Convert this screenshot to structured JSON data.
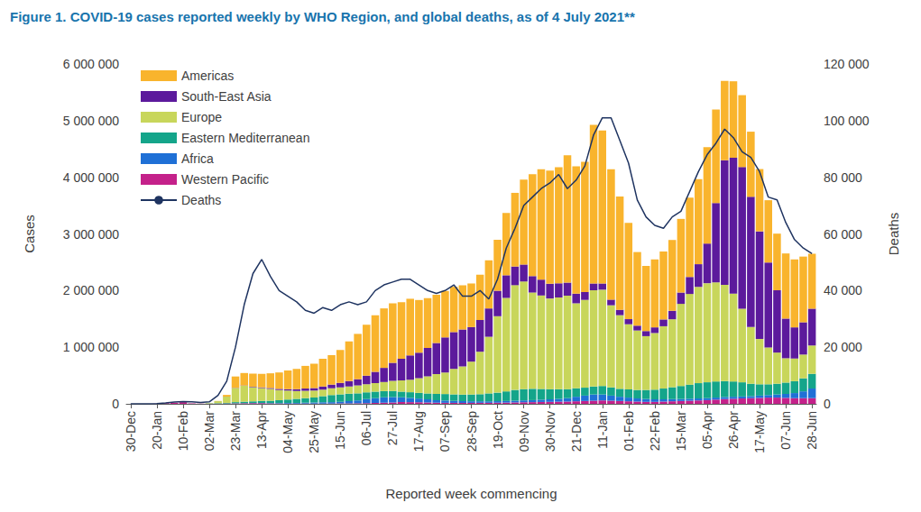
{
  "chart_data": {
    "type": "bar",
    "title": "Figure 1. COVID-19 cases reported weekly by WHO Region, and global deaths, as of 4 July 2021**",
    "x_label": "Reported week commencing",
    "y_label": "Cases",
    "y2_label": "Deaths",
    "stacked": true,
    "grid": false,
    "legend": "upper left",
    "categories": [
      "30-Dec",
      null,
      null,
      "20-Jan",
      null,
      null,
      "10-Feb",
      null,
      null,
      "02-Mar",
      null,
      null,
      "23-Mar",
      null,
      null,
      "13-Apr",
      null,
      null,
      "04-May",
      null,
      null,
      "25-May",
      null,
      null,
      "15-Jun",
      null,
      null,
      "06-Jul",
      null,
      null,
      "27-Jul",
      null,
      null,
      "17-Aug",
      null,
      null,
      "07-Sep",
      null,
      null,
      "28-Sep",
      null,
      null,
      "19-Oct",
      null,
      null,
      "09-Nov",
      null,
      null,
      "30-Nov",
      null,
      null,
      "21-Dec",
      null,
      null,
      "11-Jan",
      null,
      null,
      "01-Feb",
      null,
      null,
      "22-Feb",
      null,
      null,
      "15-Mar",
      null,
      null,
      "05-Apr",
      null,
      null,
      "26-Apr",
      null,
      null,
      "17-May",
      null,
      null,
      "07-Jun",
      null,
      null,
      "28-Jun"
    ],
    "ylim": [
      0,
      6000000
    ],
    "yticks": [
      0,
      {
        "value": 1000000,
        "label": "1 000 000"
      },
      {
        "value": 2000000,
        "label": "2 000 000"
      },
      {
        "value": 3000000,
        "label": "3 000 000"
      },
      {
        "value": 4000000,
        "label": "4 000 000"
      },
      {
        "value": 5000000,
        "label": "5 000 000"
      },
      {
        "value": 6000000,
        "label": "6 000 000"
      }
    ],
    "y2lim": [
      0,
      120000
    ],
    "y2ticks": [
      0,
      {
        "value": 20000,
        "label": "20 000"
      },
      {
        "value": 40000,
        "label": "40 000"
      },
      {
        "value": 60000,
        "label": "60 000"
      },
      {
        "value": 80000,
        "label": "80 000"
      },
      {
        "value": 100000,
        "label": "100 000"
      },
      {
        "value": 120000,
        "label": "120 000"
      }
    ],
    "series": [
      {
        "name": "Americas",
        "color": "#f9b42d",
        "values": [
          0,
          0,
          0,
          0,
          0,
          0,
          0,
          0,
          0,
          500,
          3000,
          30000,
          200000,
          220000,
          230000,
          240000,
          260000,
          290000,
          330000,
          360000,
          400000,
          430000,
          490000,
          520000,
          580000,
          700000,
          800000,
          900000,
          1000000,
          1050000,
          1050000,
          1000000,
          1000000,
          930000,
          880000,
          850000,
          820000,
          800000,
          780000,
          770000,
          800000,
          850000,
          900000,
          1100000,
          1300000,
          1500000,
          1800000,
          1950000,
          2000000,
          2050000,
          2250000,
          2250000,
          2300000,
          2800000,
          2700000,
          2300000,
          2000000,
          1700000,
          1300000,
          1150000,
          1200000,
          1200000,
          1250000,
          1300000,
          1400000,
          1500000,
          1700000,
          1650000,
          1400000,
          1350000,
          1270000,
          1150000,
          1100000,
          1100000,
          1000000,
          1150000,
          1200000,
          1160000,
          970000
        ]
      },
      {
        "name": "South-East Asia",
        "color": "#5c1a9c",
        "values": [
          0,
          0,
          0,
          0,
          0,
          0,
          0,
          0,
          0,
          0,
          500,
          1000,
          3000,
          6000,
          8000,
          10000,
          15000,
          20000,
          25000,
          30000,
          40000,
          45000,
          55000,
          65000,
          80000,
          95000,
          110000,
          150000,
          200000,
          250000,
          320000,
          380000,
          430000,
          450000,
          500000,
          550000,
          620000,
          650000,
          650000,
          610000,
          560000,
          500000,
          450000,
          400000,
          330000,
          300000,
          290000,
          280000,
          260000,
          250000,
          230000,
          170000,
          140000,
          120000,
          110000,
          100000,
          95000,
          90000,
          85000,
          90000,
          100000,
          120000,
          150000,
          200000,
          300000,
          400000,
          700000,
          1400000,
          2200000,
          2400000,
          2500000,
          2300000,
          1900000,
          1500000,
          1100000,
          700000,
          550000,
          570000,
          650000
        ]
      },
      {
        "name": "Europe",
        "color": "#c8d65b",
        "values": [
          0,
          0,
          0,
          0,
          0,
          0,
          0,
          0,
          500,
          8000,
          35000,
          110000,
          250000,
          280000,
          250000,
          230000,
          210000,
          180000,
          160000,
          140000,
          130000,
          120000,
          115000,
          120000,
          125000,
          130000,
          140000,
          145000,
          150000,
          160000,
          180000,
          200000,
          220000,
          260000,
          300000,
          350000,
          380000,
          450000,
          500000,
          580000,
          750000,
          1000000,
          1350000,
          1650000,
          1850000,
          1900000,
          1700000,
          1650000,
          1600000,
          1620000,
          1650000,
          1500000,
          1550000,
          1700000,
          1700000,
          1450000,
          1300000,
          1150000,
          1050000,
          950000,
          1000000,
          1100000,
          1200000,
          1450000,
          1600000,
          1700000,
          1750000,
          1750000,
          1700000,
          1550000,
          1300000,
          1000000,
          800000,
          650000,
          550000,
          430000,
          400000,
          420000,
          500000
        ]
      },
      {
        "name": "Eastern Mediterranean",
        "color": "#14a58a",
        "values": [
          0,
          0,
          0,
          0,
          0,
          0,
          0,
          0,
          500,
          5000,
          8000,
          10000,
          20000,
          25000,
          30000,
          35000,
          40000,
          50000,
          60000,
          70000,
          80000,
          90000,
          110000,
          125000,
          130000,
          130000,
          125000,
          120000,
          115000,
          110000,
          105000,
          100000,
          100000,
          100000,
          105000,
          110000,
          115000,
          115000,
          115000,
          120000,
          125000,
          140000,
          150000,
          170000,
          190000,
          200000,
          200000,
          190000,
          180000,
          170000,
          160000,
          150000,
          140000,
          140000,
          150000,
          145000,
          140000,
          145000,
          150000,
          160000,
          170000,
          190000,
          210000,
          230000,
          250000,
          270000,
          280000,
          285000,
          280000,
          270000,
          250000,
          220000,
          200000,
          190000,
          190000,
          200000,
          210000,
          230000,
          260000
        ]
      },
      {
        "name": "Africa",
        "color": "#1f70d6",
        "values": [
          0,
          0,
          0,
          0,
          0,
          0,
          0,
          0,
          0,
          0,
          0,
          500,
          2000,
          3000,
          4000,
          5000,
          6000,
          8000,
          10000,
          12000,
          15000,
          18000,
          22000,
          25000,
          30000,
          40000,
          50000,
          70000,
          85000,
          95000,
          95000,
          85000,
          75000,
          65000,
          55000,
          45000,
          40000,
          35000,
          30000,
          28000,
          27000,
          26000,
          27000,
          28000,
          30000,
          32000,
          35000,
          40000,
          45000,
          50000,
          60000,
          80000,
          95000,
          110000,
          105000,
          90000,
          75000,
          65000,
          55000,
          50000,
          45000,
          40000,
          38000,
          35000,
          35000,
          35000,
          35000,
          35000,
          35000,
          35000,
          35000,
          35000,
          40000,
          45000,
          55000,
          70000,
          90000,
          120000,
          170000
        ]
      },
      {
        "name": "Western Pacific",
        "color": "#c4218a",
        "values": [
          0,
          0,
          100,
          2000,
          12000,
          20000,
          30000,
          8000,
          4000,
          3000,
          4000,
          6000,
          8000,
          10000,
          10000,
          10000,
          8000,
          6000,
          5000,
          5000,
          5000,
          5000,
          5000,
          5000,
          6000,
          8000,
          10000,
          12000,
          15000,
          20000,
          25000,
          30000,
          30000,
          28000,
          25000,
          20000,
          18000,
          17000,
          17000,
          17000,
          18000,
          18000,
          20000,
          22000,
          25000,
          28000,
          30000,
          33000,
          35000,
          38000,
          40000,
          45000,
          50000,
          55000,
          60000,
          55000,
          50000,
          45000,
          40000,
          35000,
          35000,
          40000,
          45000,
          50000,
          55000,
          60000,
          65000,
          75000,
          85000,
          90000,
          95000,
          100000,
          105000,
          110000,
          110000,
          105000,
          100000,
          100000,
          100000
        ]
      },
      {
        "name": "Deaths",
        "type": "line",
        "axis": "y2",
        "color": "#1f3461",
        "marker": "none",
        "line_style": "solid",
        "values": [
          0,
          0,
          0,
          100,
          300,
          600,
          800,
          700,
          500,
          700,
          3000,
          8000,
          20000,
          35000,
          46000,
          51000,
          45000,
          40000,
          38000,
          36000,
          33000,
          32000,
          34000,
          33000,
          35000,
          36000,
          35000,
          36000,
          40000,
          42000,
          43000,
          44000,
          44000,
          42000,
          40000,
          39000,
          40000,
          42000,
          38000,
          38000,
          40000,
          37000,
          44000,
          55000,
          62000,
          70000,
          73000,
          76000,
          78000,
          81000,
          76000,
          79000,
          84000,
          95000,
          101000,
          101000,
          93000,
          85000,
          72000,
          66000,
          63000,
          62000,
          66000,
          68000,
          75000,
          82000,
          88000,
          92000,
          97000,
          94000,
          89000,
          87000,
          82000,
          73000,
          72000,
          64000,
          58000,
          55000,
          53000
        ]
      }
    ]
  }
}
